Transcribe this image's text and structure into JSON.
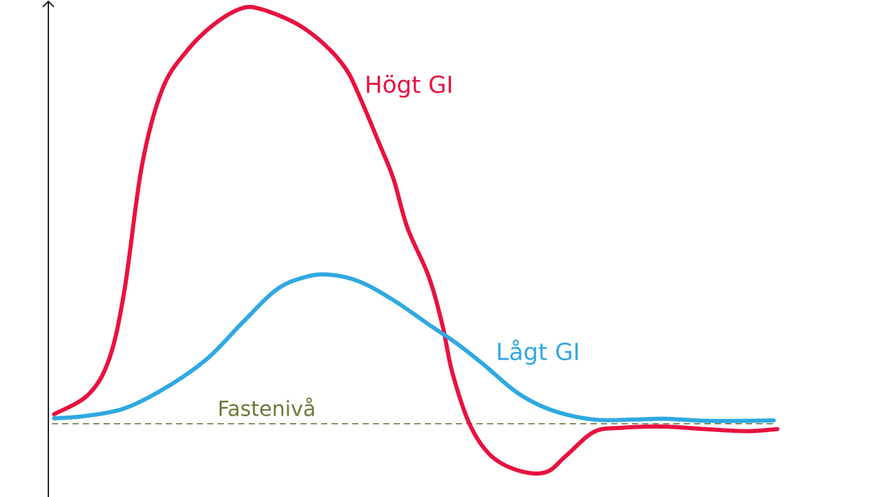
{
  "chart_data": {
    "type": "line",
    "xlim": [
      0,
      115.2
    ],
    "ylim": [
      -17.7,
      102.3
    ],
    "series": [
      {
        "name": "Högt GI",
        "color": "#e8123f",
        "x": [
          0.8,
          5.5,
          8.4,
          10.5,
          12.9,
          15.7,
          19,
          22.9,
          26.7,
          29.5,
          34.3,
          38.1,
          41,
          42.9,
          45.7,
          47.6,
          49.5,
          52.4,
          54.3,
          55.7,
          58.1,
          61,
          64.8,
          68.6,
          71.4,
          75.2,
          79,
          84.8,
          90.5,
          96.2,
          100.5
        ],
        "values": [
          2.3,
          7,
          15.7,
          32.3,
          62.3,
          80.7,
          89.8,
          96.5,
          100.3,
          100,
          96.5,
          91.5,
          85.7,
          79,
          67.3,
          59,
          47.3,
          35.7,
          24,
          12.3,
          -0.2,
          -7.7,
          -11.3,
          -11.7,
          -7.7,
          -2,
          -1,
          -0.7,
          -1.3,
          -1.8,
          -1.3
        ]
      },
      {
        "name": "Lågt GI",
        "color": "#2fa9e0",
        "x": [
          0.8,
          4.8,
          10.5,
          16.2,
          21.9,
          26.7,
          31.4,
          35.2,
          38.6,
          42.9,
          47.6,
          52.4,
          56.2,
          60,
          64.8,
          69.5,
          75.2,
          80.9,
          84.8,
          90.5,
          96.2,
          100
        ],
        "values": [
          1.3,
          1.8,
          3.7,
          8.7,
          15.7,
          24.3,
          32.3,
          35.3,
          36,
          34.3,
          29.8,
          24,
          19.5,
          14.3,
          7.3,
          3.2,
          1,
          1,
          1.2,
          0.7,
          0.7,
          0.8
        ]
      }
    ],
    "reference_line": {
      "label": "Fastenivå",
      "value": 0,
      "color": "#6b7a3a"
    }
  }
}
